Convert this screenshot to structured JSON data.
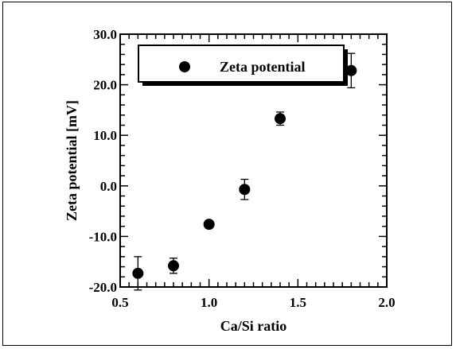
{
  "chart_data": {
    "type": "scatter",
    "xlabel": "Ca/Si ratio",
    "ylabel": "Zeta potential [mV]",
    "xlim": [
      0.5,
      2.0
    ],
    "ylim": [
      -20.0,
      30.0
    ],
    "xticks": [
      "0.5",
      "1.0",
      "1.5",
      "2.0"
    ],
    "yticks": [
      "-20.0",
      "-10.0",
      "0.0",
      "10.0",
      "20.0",
      "30.0"
    ],
    "grid": false,
    "legend_position": "top-left",
    "series": [
      {
        "name": "Zeta potential",
        "marker": "filled-circle",
        "color": "#000000",
        "points": [
          {
            "x": 0.6,
            "y": -17.3,
            "err": 3.3
          },
          {
            "x": 0.8,
            "y": -15.8,
            "err": 1.5
          },
          {
            "x": 1.0,
            "y": -7.6,
            "err": 0
          },
          {
            "x": 1.2,
            "y": -0.7,
            "err": 2.0
          },
          {
            "x": 1.4,
            "y": 13.3,
            "err": 1.3
          },
          {
            "x": 1.8,
            "y": 22.8,
            "err": 3.4
          }
        ]
      }
    ]
  }
}
